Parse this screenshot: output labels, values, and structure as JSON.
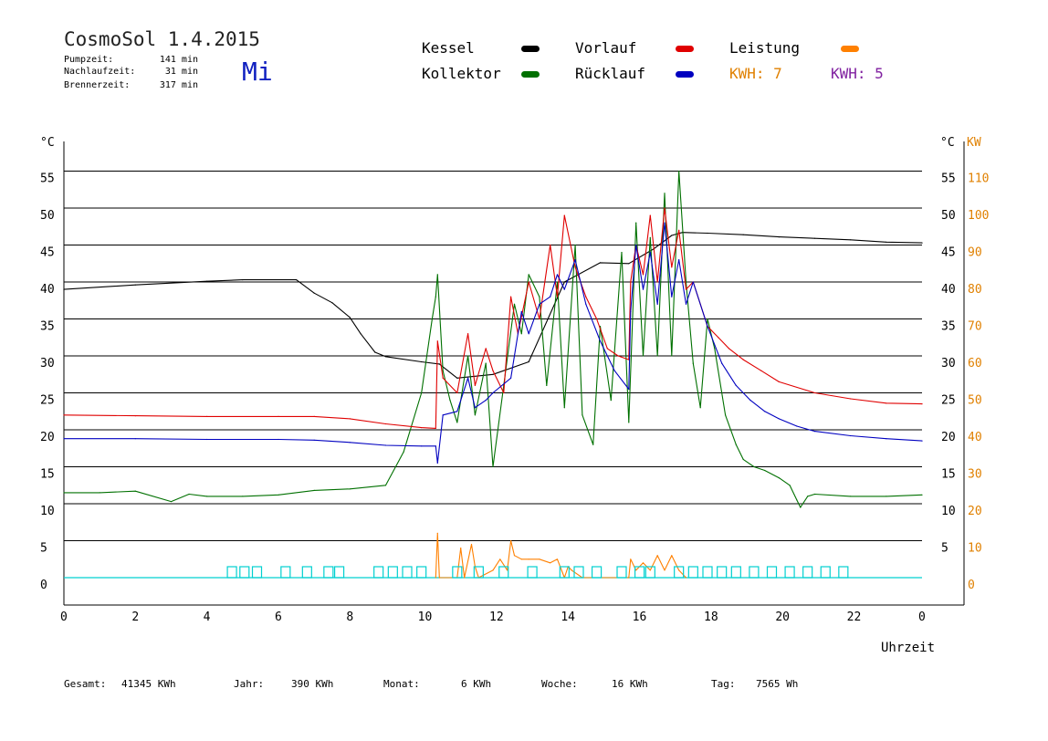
{
  "header": {
    "title": "CosmoSol 1.4.2015",
    "day": "Mi",
    "stats": [
      {
        "label": "Pumpzeit:",
        "value": "141 min"
      },
      {
        "label": "Nachlaufzeit:",
        "value": "31 min"
      },
      {
        "label": "Brennerzeit:",
        "value": "317 min"
      }
    ]
  },
  "legend": {
    "kessel": "Kessel",
    "kollektor": "Kollektor",
    "vorlauf": "Vorlauf",
    "ruecklauf": "Rücklauf",
    "leistung": "Leistung",
    "kwh_orange": "KWH: 7",
    "kwh_purple": "KWH: 5"
  },
  "colors": {
    "kessel": "#000000",
    "kollektor": "#007000",
    "vorlauf": "#e00000",
    "ruecklauf": "#0000c0",
    "leistung": "#ff8000",
    "purple": "#8020a0",
    "cyan": "#00d0d0",
    "day": "#1020c0"
  },
  "axes": {
    "left_unit": "°C",
    "right_unit_c": "°C",
    "right_unit_kw": "KW",
    "xlabel": "Uhrzeit"
  },
  "footer": [
    {
      "label": "Gesamt:",
      "value": "41345 KWh"
    },
    {
      "label": "Jahr:",
      "value": "390 KWh"
    },
    {
      "label": "Monat:",
      "value": "6 KWh"
    },
    {
      "label": "Woche:",
      "value": "16 KWh"
    },
    {
      "label": "Tag:",
      "value": "7565 Wh"
    }
  ],
  "chart_data": {
    "type": "line",
    "xlim": [
      0,
      24
    ],
    "ylim": [
      0,
      60
    ],
    "y2lim": [
      0,
      120
    ],
    "x_ticks": [
      "0",
      "2",
      "4",
      "6",
      "8",
      "10",
      "12",
      "14",
      "16",
      "18",
      "20",
      "22",
      "0"
    ],
    "y_ticks": [
      "0",
      "5",
      "10",
      "15",
      "20",
      "25",
      "30",
      "35",
      "40",
      "45",
      "50",
      "55"
    ],
    "y_right_ticks": [
      "5",
      "10",
      "15",
      "20",
      "25",
      "30",
      "35",
      "40",
      "45",
      "50",
      "55"
    ],
    "y2_ticks": [
      "0",
      "10",
      "20",
      "30",
      "40",
      "50",
      "60",
      "70",
      "80",
      "90",
      "100",
      "110"
    ],
    "grid": true,
    "series": [
      {
        "name": "Kessel",
        "x": [
          0,
          2,
          4,
          5,
          6.5,
          7,
          7.5,
          8,
          8.3,
          8.7,
          9,
          10,
          10.5,
          11,
          12,
          13,
          14,
          15,
          15.8,
          16.5,
          17,
          17.3,
          18,
          19,
          20,
          21,
          22,
          23,
          24
        ],
        "y": [
          39,
          39.6,
          40.1,
          40.3,
          40.3,
          38.5,
          37.2,
          35.2,
          33,
          30.5,
          29.9,
          29.2,
          28.9,
          27,
          27.5,
          29.2,
          40,
          42.6,
          42.5,
          44.5,
          46.3,
          46.7,
          46.6,
          46.4,
          46.1,
          45.9,
          45.7,
          45.4,
          45.3
        ]
      },
      {
        "name": "Kollektor",
        "x": [
          0,
          1,
          2,
          3,
          3.5,
          4,
          5,
          6,
          7,
          8,
          9,
          9.5,
          10,
          10.3,
          10.4,
          10.45,
          10.6,
          10.8,
          11,
          11.3,
          11.5,
          11.8,
          12,
          12.3,
          12.6,
          12.8,
          13,
          13.3,
          13.5,
          13.8,
          14,
          14.3,
          14.5,
          14.8,
          15,
          15.3,
          15.6,
          15.8,
          16,
          16.2,
          16.4,
          16.6,
          16.8,
          17,
          17.2,
          17.4,
          17.6,
          17.8,
          18,
          18.2,
          18.5,
          18.8,
          19,
          19.3,
          19.6,
          20,
          20.3,
          20.5,
          20.6,
          20.8,
          21,
          22,
          23,
          24
        ],
        "y": [
          11.5,
          11.5,
          11.7,
          10.3,
          11.3,
          11,
          11,
          11.2,
          11.8,
          12,
          12.5,
          17,
          25,
          35,
          38,
          41,
          28,
          24,
          21,
          30,
          22,
          29,
          15,
          26,
          37,
          33,
          41,
          38,
          26,
          40,
          23,
          45,
          22,
          18,
          34,
          24,
          44,
          21,
          48,
          30,
          46,
          30,
          52,
          30,
          55,
          40,
          29,
          23,
          35,
          31,
          22,
          18,
          16,
          15,
          14.5,
          13.5,
          12.5,
          10.5,
          9.5,
          11,
          11.3,
          11,
          11,
          11.2
        ]
      },
      {
        "name": "Vorlauf",
        "x": [
          0,
          2,
          4,
          6,
          7,
          8,
          9,
          10,
          10.4,
          10.45,
          10.6,
          11,
          11.3,
          11.5,
          11.8,
          12,
          12.3,
          12.5,
          12.7,
          13,
          13.3,
          13.6,
          13.8,
          14,
          14.3,
          14.6,
          14.9,
          15.2,
          15.5,
          15.8,
          15.85,
          16,
          16.2,
          16.4,
          16.6,
          16.8,
          17,
          17.2,
          17.4,
          17.6,
          17.8,
          18,
          18.3,
          18.6,
          19,
          19.5,
          20,
          21,
          22,
          23,
          24
        ],
        "y": [
          22,
          21.9,
          21.8,
          21.8,
          21.8,
          21.5,
          20.8,
          20.3,
          20.2,
          32,
          27,
          25,
          33,
          26,
          31,
          28,
          25,
          38,
          33,
          40,
          35,
          45,
          38,
          49,
          42,
          38,
          35,
          31,
          30,
          29.5,
          40,
          45,
          41,
          49,
          40,
          50,
          42,
          47,
          39,
          40,
          37,
          34,
          32.5,
          31,
          29.5,
          28,
          26.5,
          25,
          24.2,
          23.6,
          23.5
        ]
      },
      {
        "name": "Rücklauf",
        "x": [
          0,
          2,
          4,
          6,
          7,
          8,
          9,
          10,
          10.4,
          10.45,
          10.6,
          11,
          11.3,
          11.5,
          11.8,
          12,
          12.5,
          12.8,
          13,
          13.3,
          13.6,
          13.8,
          14,
          14.3,
          14.6,
          15,
          15.4,
          15.8,
          15.85,
          16,
          16.2,
          16.4,
          16.6,
          16.8,
          17,
          17.2,
          17.4,
          17.6,
          18,
          18.4,
          18.8,
          19.2,
          19.6,
          20,
          20.5,
          21,
          22,
          23,
          24
        ],
        "y": [
          18.8,
          18.8,
          18.7,
          18.7,
          18.6,
          18.3,
          17.9,
          17.8,
          17.8,
          15.5,
          22,
          22.5,
          27,
          23,
          24,
          25,
          27,
          36,
          33,
          37,
          38,
          41,
          39,
          43,
          37,
          32,
          28,
          25.5,
          36,
          45,
          39,
          44,
          37,
          48,
          38,
          43,
          37,
          40,
          34,
          29,
          26,
          24,
          22.5,
          21.5,
          20.5,
          19.8,
          19.2,
          18.8,
          18.5
        ]
      },
      {
        "name": "Leistung",
        "axis": "y2",
        "x": [
          10.4,
          10.45,
          10.5,
          11,
          11.1,
          11.2,
          11.4,
          11.5,
          11.6,
          12,
          12.2,
          12.4,
          12.5,
          12.6,
          12.8,
          13,
          13.3,
          13.6,
          13.8,
          14,
          14.1,
          14.2,
          14.5,
          15.8,
          15.85,
          16,
          16.2,
          16.4,
          16.6,
          16.8,
          17,
          17.2,
          17.4
        ],
        "y": [
          0,
          12,
          0,
          0,
          8,
          0,
          9,
          3,
          0,
          2,
          5,
          2,
          10,
          6,
          5,
          5,
          5,
          4,
          5,
          0,
          3,
          2,
          0,
          0,
          5,
          2,
          4,
          2,
          6,
          2,
          6,
          2,
          0
        ]
      }
    ],
    "pump_marker_hours": [
      4.7,
      5.05,
      5.4,
      6.2,
      6.8,
      7.4,
      7.7,
      8.8,
      9.2,
      9.6,
      10,
      11,
      11.6,
      12.3,
      13.1,
      14,
      14.4,
      14.9,
      15.6,
      16.1,
      16.4,
      17.2,
      17.6,
      18,
      18.4,
      18.8,
      19.3,
      19.8,
      20.3,
      20.8,
      21.3,
      21.8
    ]
  }
}
